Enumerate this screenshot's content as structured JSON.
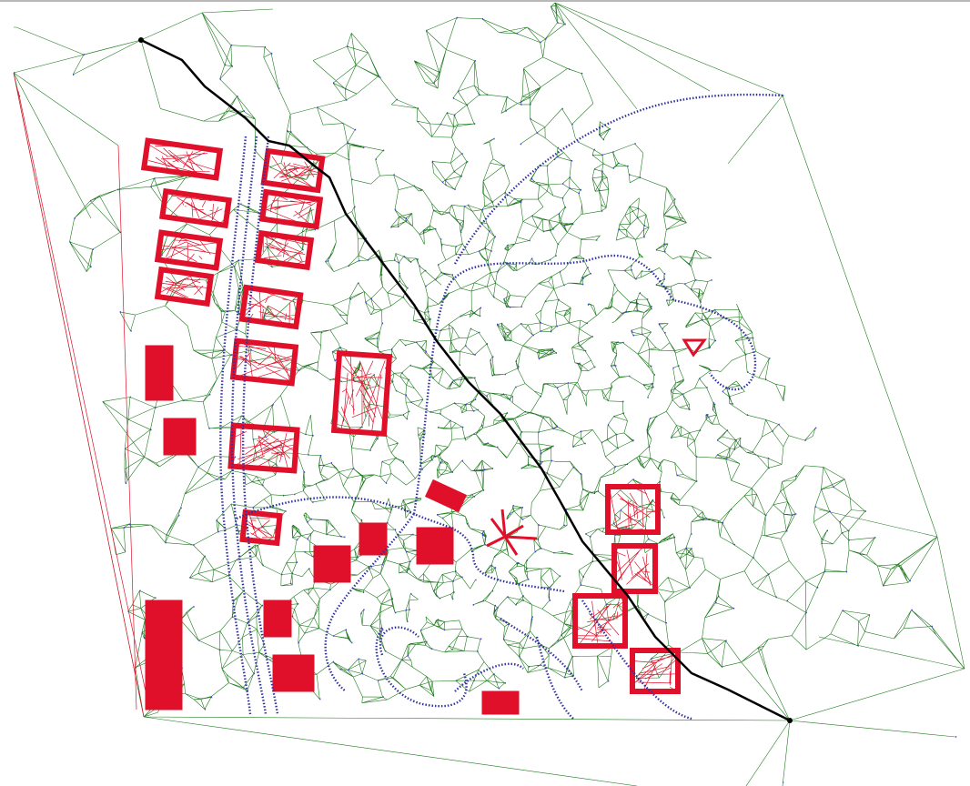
{
  "colors": {
    "background": "#ffffff",
    "terrain_edges": "#1e7a1e",
    "building_edges": "#e0102a",
    "building_fill": "#e0102a",
    "constraint_lines": "#3030a0",
    "constraint_nodes": "#4040c0",
    "cut_line": "#000000",
    "top_border": "#b8b8b8"
  },
  "layers": [
    "terrain-mesh",
    "building-mesh",
    "road-constraints",
    "cut-line"
  ]
}
